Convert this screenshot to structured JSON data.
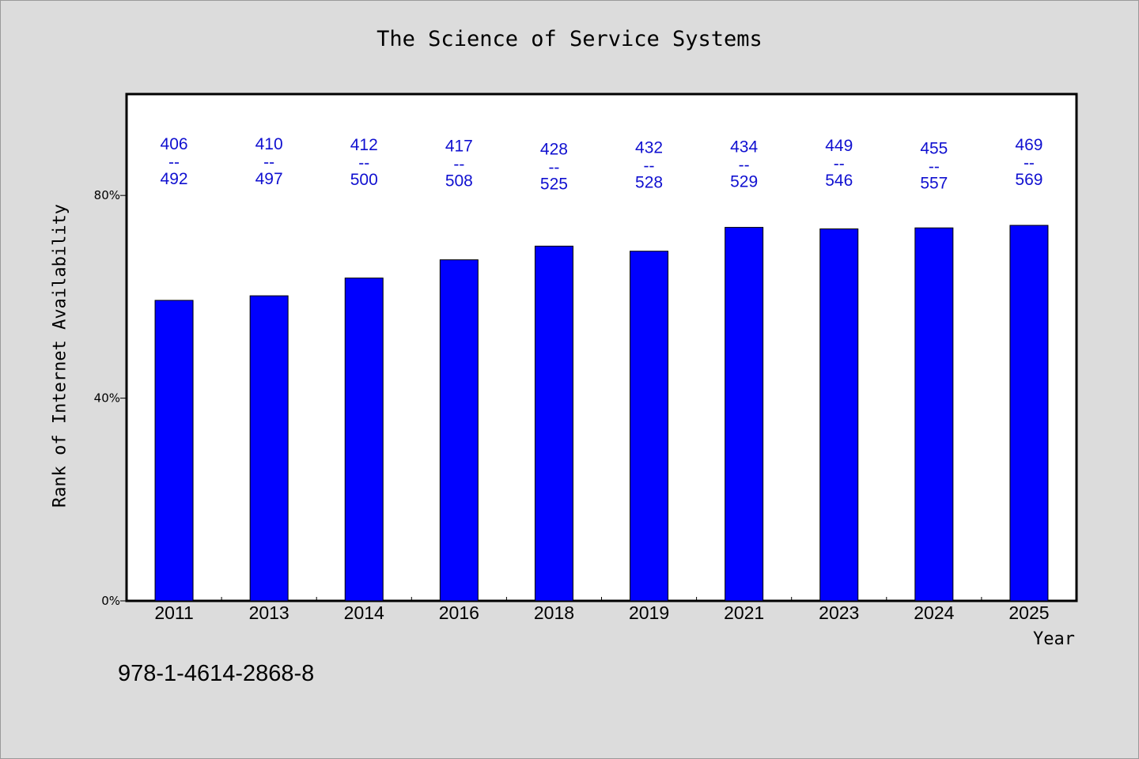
{
  "chart_data": {
    "type": "bar",
    "title": "The Science of Service Systems",
    "xlabel": "Year",
    "ylabel": "Rank of Internet Availability",
    "categories": [
      "2011",
      "2013",
      "2014",
      "2016",
      "2018",
      "2019",
      "2021",
      "2023",
      "2024",
      "2025"
    ],
    "values": [
      82.5,
      82.5,
      82.4,
      82.1,
      81.5,
      81.8,
      82.0,
      82.2,
      81.7,
      82.4
    ],
    "series": [
      {
        "values": [
          59.3,
          60.2,
          63.7,
          67.3,
          70.0,
          69.0,
          73.7,
          73.4,
          73.6,
          74.1
        ]
      }
    ],
    "labels": [
      {
        "top": "406",
        "sep": "--",
        "bottom": "492"
      },
      {
        "top": "410",
        "sep": "--",
        "bottom": "497"
      },
      {
        "top": "412",
        "sep": "--",
        "bottom": "500"
      },
      {
        "top": "417",
        "sep": "--",
        "bottom": "508"
      },
      {
        "top": "428",
        "sep": "--",
        "bottom": "525"
      },
      {
        "top": "432",
        "sep": "--",
        "bottom": "528"
      },
      {
        "top": "434",
        "sep": "--",
        "bottom": "529"
      },
      {
        "top": "449",
        "sep": "--",
        "bottom": "546"
      },
      {
        "top": "455",
        "sep": "--",
        "bottom": "557"
      },
      {
        "top": "469",
        "sep": "--",
        "bottom": "569"
      }
    ],
    "yticks": [
      {
        "value": 0,
        "label": "0%"
      },
      {
        "value": 40,
        "label": "40%"
      },
      {
        "value": 80,
        "label": "80%"
      }
    ],
    "ylim": [
      0,
      100
    ],
    "grid": false,
    "bar_color": "#0000ff",
    "label_color": "#1010d0"
  },
  "footer": {
    "isbn": "978-1-4614-2868-8"
  }
}
